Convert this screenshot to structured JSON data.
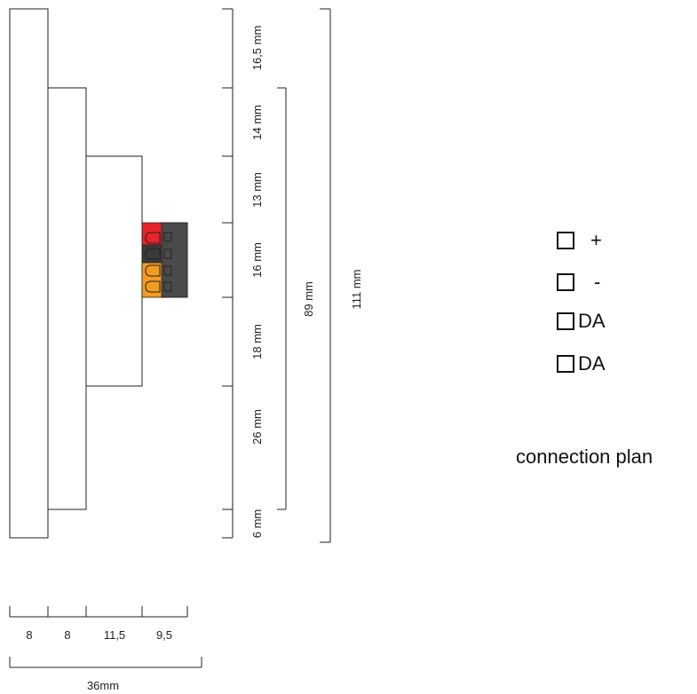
{
  "side_view": {
    "vertical_dimensions": [
      "16,5 mm",
      "14 mm",
      "13 mm",
      "16 mm",
      "18 mm",
      "26 mm",
      "6 mm"
    ],
    "span_inner": "89 mm",
    "span_outer": "111 mm",
    "horizontal_dimensions": [
      "8",
      "8",
      "11,5",
      "9,5"
    ],
    "total_width": "36mm"
  },
  "terminal_colors": {
    "red": "#e8232a",
    "black": "#3a3a3a",
    "orange": "#f29c1f",
    "housing": "#4a4a4a"
  },
  "connection_plan": {
    "terminals": [
      {
        "label": "+"
      },
      {
        "label": "-"
      },
      {
        "label": "DA"
      },
      {
        "label": "DA"
      }
    ],
    "caption": "connection plan"
  }
}
